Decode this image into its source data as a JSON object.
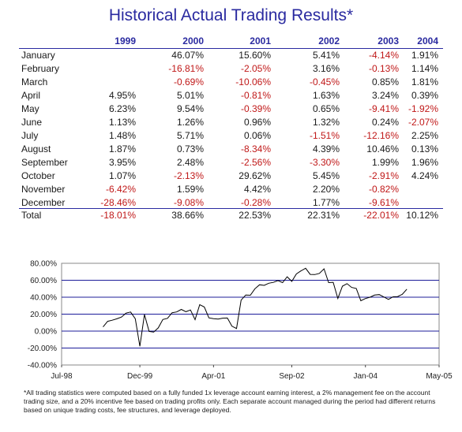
{
  "title": "Historical Actual Trading Results*",
  "table": {
    "years": [
      "1999",
      "2000",
      "2001",
      "2002",
      "2003",
      "2004"
    ],
    "rows": [
      {
        "month": "January",
        "values": [
          "",
          "46.07%",
          "15.60%",
          "5.41%",
          "-4.14%",
          "1.91%"
        ]
      },
      {
        "month": "February",
        "values": [
          "",
          "-16.81%",
          "-2.05%",
          "3.16%",
          "-0.13%",
          "1.14%"
        ]
      },
      {
        "month": "March",
        "values": [
          "",
          "-0.69%",
          "-10.06%",
          "-0.45%",
          "0.85%",
          "1.81%"
        ]
      },
      {
        "month": "April",
        "values": [
          "4.95%",
          "5.01%",
          "-0.81%",
          "1.63%",
          "3.24%",
          "0.39%"
        ]
      },
      {
        "month": "May",
        "values": [
          "6.23%",
          "9.54%",
          "-0.39%",
          "0.65%",
          "-9.41%",
          "-1.92%"
        ]
      },
      {
        "month": "June",
        "values": [
          "1.13%",
          "1.26%",
          "0.96%",
          "1.32%",
          "0.24%",
          "-2.07%"
        ]
      },
      {
        "month": "July",
        "values": [
          "1.48%",
          "5.71%",
          "0.06%",
          "-1.51%",
          "-12.16%",
          "2.25%"
        ]
      },
      {
        "month": "August",
        "values": [
          "1.87%",
          "0.73%",
          "-8.34%",
          "4.39%",
          "10.46%",
          "0.13%"
        ]
      },
      {
        "month": "September",
        "values": [
          "3.95%",
          "2.48%",
          "-2.56%",
          "-3.30%",
          "1.99%",
          "1.96%"
        ]
      },
      {
        "month": "October",
        "values": [
          "1.07%",
          "-2.13%",
          "29.62%",
          "5.45%",
          "-2.91%",
          "4.24%"
        ]
      },
      {
        "month": "November",
        "values": [
          "-6.42%",
          "1.59%",
          "4.42%",
          "2.20%",
          "-0.82%",
          ""
        ]
      },
      {
        "month": "December",
        "values": [
          "-28.46%",
          "-9.08%",
          "-0.28%",
          "1.77%",
          "-9.61%",
          ""
        ]
      }
    ],
    "total": {
      "month": "Total",
      "values": [
        "-18.01%",
        "38.66%",
        "22.53%",
        "22.31%",
        "-22.01%",
        "10.12%"
      ]
    }
  },
  "chart_data": {
    "type": "line",
    "title": "",
    "xlabel": "",
    "ylabel": "",
    "x_tick_labels": [
      "Jul-98",
      "Dec-99",
      "Apr-01",
      "Sep-02",
      "Jan-04",
      "May-05"
    ],
    "y_tick_labels": [
      "80.00%",
      "60.00%",
      "40.00%",
      "20.00%",
      "0.00%",
      "-20.00%",
      "-40.00%"
    ],
    "ylim": [
      -40,
      80
    ],
    "xlim": [
      "1998-07",
      "2005-05"
    ],
    "grid": "horizontal",
    "series": [
      {
        "color": "#000000",
        "points": [
          [
            "1999-04",
            4.95
          ],
          [
            "1999-05",
            11.5
          ],
          [
            "1999-06",
            12.8
          ],
          [
            "1999-07",
            14.5
          ],
          [
            "1999-08",
            16.6
          ],
          [
            "1999-09",
            21.2
          ],
          [
            "1999-10",
            22.5
          ],
          [
            "1999-11",
            14.6
          ],
          [
            "1999-12",
            -18.0
          ],
          [
            "2000-01",
            19.6
          ],
          [
            "2000-02",
            -0.4
          ],
          [
            "2000-03",
            -1.1
          ],
          [
            "2000-04",
            3.8
          ],
          [
            "2000-05",
            13.7
          ],
          [
            "2000-06",
            15.1
          ],
          [
            "2000-07",
            21.7
          ],
          [
            "2000-08",
            22.6
          ],
          [
            "2000-09",
            25.6
          ],
          [
            "2000-10",
            22.9
          ],
          [
            "2000-11",
            24.9
          ],
          [
            "2000-12",
            13.5
          ],
          [
            "2001-01",
            31.2
          ],
          [
            "2001-02",
            28.5
          ],
          [
            "2001-03",
            15.6
          ],
          [
            "2001-04",
            14.7
          ],
          [
            "2001-05",
            14.2
          ],
          [
            "2001-06",
            15.3
          ],
          [
            "2001-07",
            15.4
          ],
          [
            "2001-08",
            5.8
          ],
          [
            "2001-09",
            3.1
          ],
          [
            "2001-10",
            36.6
          ],
          [
            "2001-11",
            42.6
          ],
          [
            "2001-12",
            42.3
          ],
          [
            "2002-01",
            50.0
          ],
          [
            "2002-02",
            54.7
          ],
          [
            "2002-03",
            54.0
          ],
          [
            "2002-04",
            56.5
          ],
          [
            "2002-05",
            57.5
          ],
          [
            "2002-06",
            59.6
          ],
          [
            "2002-07",
            57.2
          ],
          [
            "2002-08",
            64.1
          ],
          [
            "2002-09",
            58.7
          ],
          [
            "2002-10",
            67.4
          ],
          [
            "2002-11",
            71.1
          ],
          [
            "2002-12",
            74.1
          ],
          [
            "2003-01",
            66.9
          ],
          [
            "2003-02",
            66.7
          ],
          [
            "2003-03",
            68.1
          ],
          [
            "2003-04",
            73.5
          ],
          [
            "2003-05",
            57.2
          ],
          [
            "2003-06",
            57.6
          ],
          [
            "2003-07",
            38.5
          ],
          [
            "2003-08",
            53.0
          ],
          [
            "2003-09",
            56.0
          ],
          [
            "2003-10",
            51.5
          ],
          [
            "2003-11",
            50.3
          ],
          [
            "2003-12",
            35.8
          ],
          [
            "2004-01",
            38.4
          ],
          [
            "2004-02",
            40.0
          ],
          [
            "2004-03",
            42.5
          ],
          [
            "2004-04",
            43.1
          ],
          [
            "2004-05",
            40.3
          ],
          [
            "2004-06",
            37.4
          ],
          [
            "2004-07",
            40.5
          ],
          [
            "2004-08",
            40.7
          ],
          [
            "2004-09",
            43.4
          ],
          [
            "2004-10",
            49.5
          ]
        ]
      }
    ]
  },
  "footnote": "*All trading statistics were computed based on a fully funded 1x leverage account earning interest, a 2% management fee on the account trading size, and a 20% incentive fee based on trading profits only. Each separate account managed during the period had different returns based on unique trading costs, fee structures, and leverage deployed."
}
